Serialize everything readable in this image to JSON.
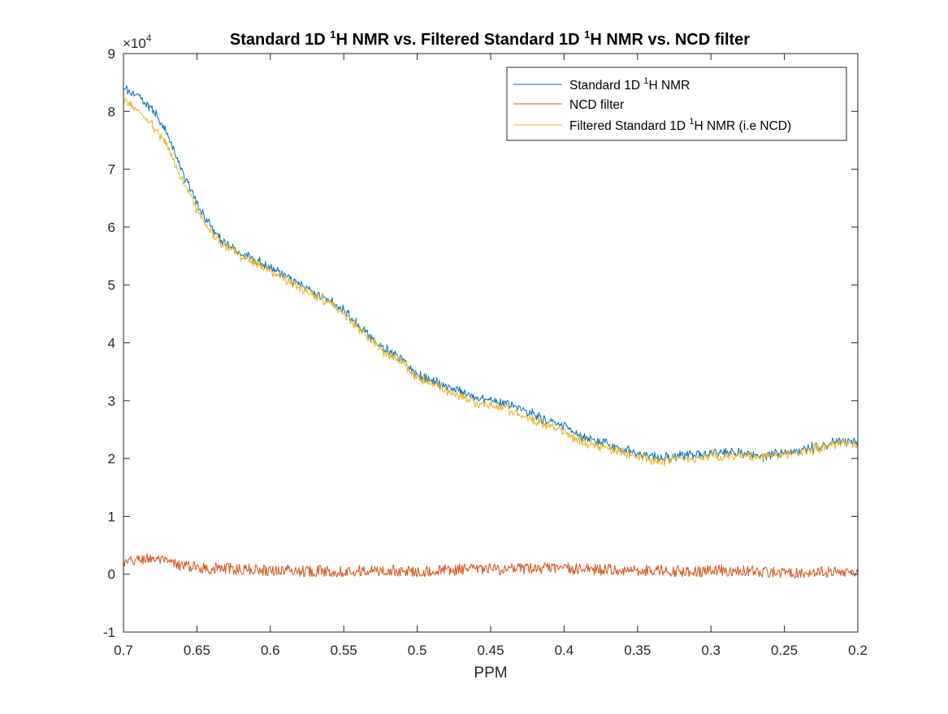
{
  "chart_data": {
    "type": "line",
    "title": {
      "pre": "Standard 1D ",
      "sup1": "1",
      "mid": "H NMR vs. Filtered Standard 1D ",
      "sup2": "1",
      "post": "H NMR vs. NCD filter"
    },
    "xlabel": "PPM",
    "ylabel": "",
    "x_reversed": true,
    "xlim": [
      0.2,
      0.7
    ],
    "ylim": [
      -10000,
      90000
    ],
    "y_exponent_label": {
      "base": "×10",
      "exp": "4"
    },
    "x_ticks": [
      0.7,
      0.65,
      0.6,
      0.55,
      0.5,
      0.45,
      0.4,
      0.35,
      0.3,
      0.25,
      0.2
    ],
    "x_tick_labels": [
      "0.7",
      "0.65",
      "0.6",
      "0.55",
      "0.5",
      "0.45",
      "0.4",
      "0.35",
      "0.3",
      "0.25",
      "0.2"
    ],
    "y_ticks": [
      -10000,
      0,
      10000,
      20000,
      30000,
      40000,
      50000,
      60000,
      70000,
      80000,
      90000
    ],
    "y_tick_labels": [
      "-1",
      "0",
      "1",
      "2",
      "3",
      "4",
      "5",
      "6",
      "7",
      "8",
      "9"
    ],
    "grid": false,
    "legend_position": "top-right",
    "noise": {
      "Standard": 900,
      "NCD": 1000,
      "Filtered": 900
    },
    "series": [
      {
        "key": "Standard",
        "legend": {
          "pre": "Standard 1D ",
          "sup": "1",
          "post": "H NMR"
        },
        "color": "#0072BD",
        "points": [
          [
            0.7,
            84000
          ],
          [
            0.69,
            82500
          ],
          [
            0.68,
            80500
          ],
          [
            0.67,
            76000
          ],
          [
            0.66,
            69500
          ],
          [
            0.65,
            64000
          ],
          [
            0.64,
            60000
          ],
          [
            0.63,
            57000
          ],
          [
            0.62,
            55500
          ],
          [
            0.61,
            54500
          ],
          [
            0.6,
            53000
          ],
          [
            0.59,
            51500
          ],
          [
            0.58,
            50000
          ],
          [
            0.57,
            48500
          ],
          [
            0.56,
            47500
          ],
          [
            0.55,
            45500
          ],
          [
            0.54,
            43000
          ],
          [
            0.53,
            40500
          ],
          [
            0.52,
            38500
          ],
          [
            0.51,
            37000
          ],
          [
            0.5,
            34500
          ],
          [
            0.49,
            33500
          ],
          [
            0.48,
            32500
          ],
          [
            0.47,
            31500
          ],
          [
            0.46,
            30500
          ],
          [
            0.45,
            30000
          ],
          [
            0.44,
            29500
          ],
          [
            0.43,
            28500
          ],
          [
            0.42,
            27500
          ],
          [
            0.41,
            26500
          ],
          [
            0.4,
            25500
          ],
          [
            0.39,
            24000
          ],
          [
            0.38,
            23000
          ],
          [
            0.37,
            22500
          ],
          [
            0.36,
            21500
          ],
          [
            0.35,
            21000
          ],
          [
            0.34,
            20500
          ],
          [
            0.33,
            20000
          ],
          [
            0.32,
            20500
          ],
          [
            0.31,
            20500
          ],
          [
            0.3,
            21000
          ],
          [
            0.29,
            21000
          ],
          [
            0.28,
            21000
          ],
          [
            0.27,
            20500
          ],
          [
            0.26,
            20500
          ],
          [
            0.25,
            21000
          ],
          [
            0.24,
            21500
          ],
          [
            0.23,
            22000
          ],
          [
            0.22,
            22500
          ],
          [
            0.21,
            23000
          ],
          [
            0.2,
            23000
          ]
        ]
      },
      {
        "key": "NCD",
        "legend": {
          "pre": "NCD filter",
          "sup": "",
          "post": ""
        },
        "color": "#D95319",
        "points": [
          [
            0.7,
            1800
          ],
          [
            0.69,
            2500
          ],
          [
            0.68,
            2800
          ],
          [
            0.67,
            2000
          ],
          [
            0.66,
            1500
          ],
          [
            0.65,
            1200
          ],
          [
            0.64,
            1000
          ],
          [
            0.63,
            1000
          ],
          [
            0.62,
            800
          ],
          [
            0.61,
            800
          ],
          [
            0.6,
            700
          ],
          [
            0.59,
            700
          ],
          [
            0.58,
            600
          ],
          [
            0.57,
            600
          ],
          [
            0.56,
            500
          ],
          [
            0.55,
            500
          ],
          [
            0.54,
            600
          ],
          [
            0.53,
            500
          ],
          [
            0.52,
            600
          ],
          [
            0.51,
            500
          ],
          [
            0.5,
            500
          ],
          [
            0.49,
            500
          ],
          [
            0.48,
            700
          ],
          [
            0.47,
            800
          ],
          [
            0.46,
            900
          ],
          [
            0.45,
            900
          ],
          [
            0.44,
            800
          ],
          [
            0.43,
            900
          ],
          [
            0.42,
            1000
          ],
          [
            0.41,
            1000
          ],
          [
            0.4,
            1000
          ],
          [
            0.39,
            900
          ],
          [
            0.38,
            800
          ],
          [
            0.37,
            800
          ],
          [
            0.36,
            700
          ],
          [
            0.35,
            700
          ],
          [
            0.34,
            700
          ],
          [
            0.33,
            600
          ],
          [
            0.32,
            500
          ],
          [
            0.31,
            500
          ],
          [
            0.3,
            600
          ],
          [
            0.29,
            600
          ],
          [
            0.28,
            500
          ],
          [
            0.27,
            400
          ],
          [
            0.26,
            300
          ],
          [
            0.25,
            300
          ],
          [
            0.24,
            300
          ],
          [
            0.23,
            400
          ],
          [
            0.22,
            300
          ],
          [
            0.21,
            300
          ],
          [
            0.2,
            700
          ]
        ]
      },
      {
        "key": "Filtered",
        "legend": {
          "pre": "Filtered Standard 1D ",
          "sup": "1",
          "post": "H NMR (i.e NCD)"
        },
        "color": "#EDB120",
        "points": [
          [
            0.7,
            82000
          ],
          [
            0.69,
            80000
          ],
          [
            0.68,
            77500
          ],
          [
            0.67,
            74000
          ],
          [
            0.66,
            68000
          ],
          [
            0.65,
            63000
          ],
          [
            0.64,
            59000
          ],
          [
            0.63,
            56500
          ],
          [
            0.62,
            55000
          ],
          [
            0.61,
            54000
          ],
          [
            0.6,
            52500
          ],
          [
            0.59,
            51000
          ],
          [
            0.58,
            49500
          ],
          [
            0.57,
            48000
          ],
          [
            0.56,
            47000
          ],
          [
            0.55,
            45000
          ],
          [
            0.54,
            42500
          ],
          [
            0.53,
            40000
          ],
          [
            0.52,
            38000
          ],
          [
            0.51,
            36500
          ],
          [
            0.5,
            34000
          ],
          [
            0.49,
            33000
          ],
          [
            0.48,
            31800
          ],
          [
            0.47,
            30700
          ],
          [
            0.46,
            29600
          ],
          [
            0.45,
            29100
          ],
          [
            0.44,
            28700
          ],
          [
            0.43,
            27600
          ],
          [
            0.42,
            26500
          ],
          [
            0.41,
            25500
          ],
          [
            0.4,
            24500
          ],
          [
            0.39,
            23100
          ],
          [
            0.38,
            22200
          ],
          [
            0.37,
            21700
          ],
          [
            0.36,
            20800
          ],
          [
            0.35,
            20300
          ],
          [
            0.34,
            19800
          ],
          [
            0.33,
            19400
          ],
          [
            0.32,
            20000
          ],
          [
            0.31,
            20000
          ],
          [
            0.3,
            20400
          ],
          [
            0.29,
            20400
          ],
          [
            0.28,
            20500
          ],
          [
            0.27,
            20100
          ],
          [
            0.26,
            20200
          ],
          [
            0.25,
            20700
          ],
          [
            0.24,
            21200
          ],
          [
            0.23,
            21600
          ],
          [
            0.22,
            22200
          ],
          [
            0.21,
            22700
          ],
          [
            0.2,
            22300
          ]
        ]
      }
    ]
  }
}
